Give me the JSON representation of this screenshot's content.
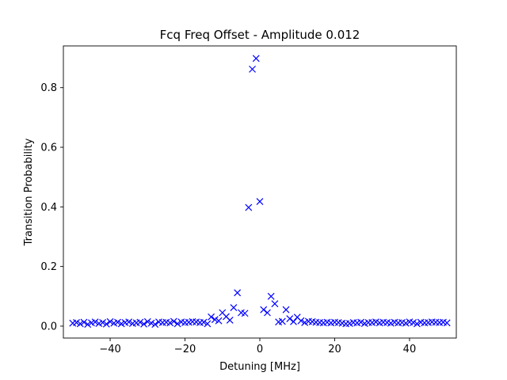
{
  "chart_data": {
    "type": "scatter",
    "title": "Fcq Freq Offset - Amplitude 0.012",
    "xlabel": "Detuning [MHz]",
    "ylabel": "Transition Probability",
    "xlim": [
      -52.5,
      52.5
    ],
    "ylim": [
      -0.04,
      0.94
    ],
    "xticks": [
      -40,
      -20,
      0,
      20,
      40
    ],
    "yticks": [
      0.0,
      0.2,
      0.4,
      0.6,
      0.8
    ],
    "xtick_labels": [
      "−40",
      "−20",
      "0",
      "20",
      "40"
    ],
    "ytick_labels": [
      "0.0",
      "0.2",
      "0.4",
      "0.6",
      "0.8"
    ],
    "marker": "x",
    "color": "#0000ff",
    "grid": false,
    "series": [
      {
        "x": [
          -50,
          -49,
          -48,
          -47,
          -46,
          -45,
          -44,
          -43,
          -42,
          -41,
          -40,
          -39,
          -38,
          -37,
          -36,
          -35,
          -34,
          -33,
          -32,
          -31,
          -30,
          -29,
          -28,
          -27,
          -26,
          -25,
          -24,
          -23,
          -22,
          -21,
          -20,
          -19,
          -18,
          -17,
          -16,
          -15,
          -14,
          -13,
          -12,
          -11,
          -10,
          -9,
          -8,
          -7,
          -6,
          -5,
          -4,
          -3,
          -2,
          -1,
          0,
          1,
          2,
          3,
          4,
          5,
          6,
          7,
          8,
          9,
          10,
          11,
          12,
          13,
          14,
          15,
          16,
          17,
          18,
          19,
          20,
          21,
          22,
          23,
          24,
          25,
          26,
          27,
          28,
          29,
          30,
          31,
          32,
          33,
          34,
          35,
          36,
          37,
          38,
          39,
          40,
          41,
          42,
          43,
          44,
          45,
          46,
          47,
          48,
          49,
          50
        ],
        "y": [
          0.01,
          0.012,
          0.008,
          0.013,
          0.006,
          0.011,
          0.014,
          0.009,
          0.012,
          0.007,
          0.015,
          0.01,
          0.013,
          0.008,
          0.012,
          0.014,
          0.009,
          0.011,
          0.013,
          0.007,
          0.015,
          0.01,
          0.006,
          0.014,
          0.012,
          0.013,
          0.011,
          0.016,
          0.008,
          0.014,
          0.012,
          0.013,
          0.015,
          0.014,
          0.012,
          0.013,
          0.008,
          0.031,
          0.022,
          0.018,
          0.045,
          0.032,
          0.02,
          0.062,
          0.112,
          0.045,
          0.043,
          0.398,
          0.862,
          0.898,
          0.418,
          0.055,
          0.045,
          0.1,
          0.075,
          0.014,
          0.016,
          0.055,
          0.025,
          0.015,
          0.03,
          0.018,
          0.012,
          0.016,
          0.015,
          0.013,
          0.012,
          0.011,
          0.013,
          0.011,
          0.013,
          0.012,
          0.01,
          0.008,
          0.009,
          0.012,
          0.011,
          0.013,
          0.009,
          0.012,
          0.012,
          0.014,
          0.011,
          0.013,
          0.012,
          0.01,
          0.013,
          0.011,
          0.012,
          0.01,
          0.014,
          0.012,
          0.008,
          0.013,
          0.011,
          0.012,
          0.014,
          0.013,
          0.012,
          0.013,
          0.011
        ]
      }
    ]
  }
}
